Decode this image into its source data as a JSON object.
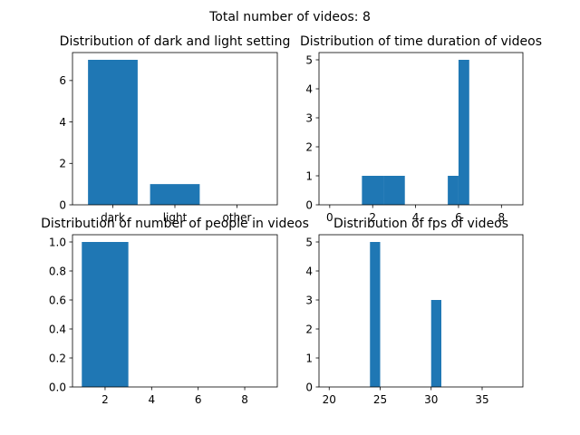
{
  "figure": {
    "suptitle": "Total number of videos: 8",
    "bar_color": "#1f77b4",
    "text_color": "#000000",
    "spine_color": "#000000"
  },
  "chart_data": [
    {
      "type": "bar",
      "title": "Distribution of dark and light setting",
      "categories": [
        "dark",
        "light",
        "other"
      ],
      "values": [
        7,
        1,
        0
      ],
      "xlabel": "",
      "ylabel": "",
      "ylim": [
        0,
        7.35
      ],
      "yticks": [
        0,
        2,
        4,
        6
      ],
      "ytick_labels": [
        "0",
        "2",
        "4",
        "6"
      ],
      "grid": false
    },
    {
      "type": "histogram",
      "title": "Distribution of time duration of videos",
      "bins": [
        {
          "x0": 1.5,
          "x1": 2.5,
          "count": 1
        },
        {
          "x0": 2.5,
          "x1": 3.5,
          "count": 1
        },
        {
          "x0": 5.5,
          "x1": 6.0,
          "count": 1
        },
        {
          "x0": 6.0,
          "x1": 6.5,
          "count": 5
        }
      ],
      "xlim": [
        -0.5,
        9.0
      ],
      "ylim": [
        0,
        5.25
      ],
      "xticks": [
        0,
        2,
        4,
        6,
        8
      ],
      "xtick_labels": [
        "0",
        "2",
        "4",
        "6",
        "8"
      ],
      "yticks": [
        0,
        1,
        2,
        3,
        4,
        5
      ],
      "ytick_labels": [
        "0",
        "1",
        "2",
        "3",
        "4",
        "5"
      ],
      "xlabel": "",
      "ylabel": "",
      "grid": false
    },
    {
      "type": "histogram",
      "title": "Distribution of number of people in videos",
      "bins": [
        {
          "x0": 1.0,
          "x1": 3.0,
          "count": 1
        }
      ],
      "xlim": [
        0.6,
        9.4
      ],
      "ylim": [
        0,
        1.05
      ],
      "xticks": [
        2,
        4,
        6,
        8
      ],
      "xtick_labels": [
        "2",
        "4",
        "6",
        "8"
      ],
      "yticks": [
        0,
        0.2,
        0.4,
        0.6,
        0.8,
        1.0
      ],
      "ytick_labels": [
        "0.0",
        "0.2",
        "0.4",
        "0.6",
        "0.8",
        "1.0"
      ],
      "xlabel": "",
      "ylabel": "",
      "grid": false
    },
    {
      "type": "histogram",
      "title": "Distribution of fps of videos",
      "bins": [
        {
          "x0": 24,
          "x1": 25,
          "count": 5
        },
        {
          "x0": 30,
          "x1": 31,
          "count": 3
        }
      ],
      "xlim": [
        19,
        39
      ],
      "ylim": [
        0,
        5.25
      ],
      "xticks": [
        20,
        25,
        30,
        35
      ],
      "xtick_labels": [
        "20",
        "25",
        "30",
        "35"
      ],
      "yticks": [
        0,
        1,
        2,
        3,
        4,
        5
      ],
      "ytick_labels": [
        "0",
        "1",
        "2",
        "3",
        "4",
        "5"
      ],
      "xlabel": "",
      "ylabel": "",
      "grid": false
    }
  ]
}
